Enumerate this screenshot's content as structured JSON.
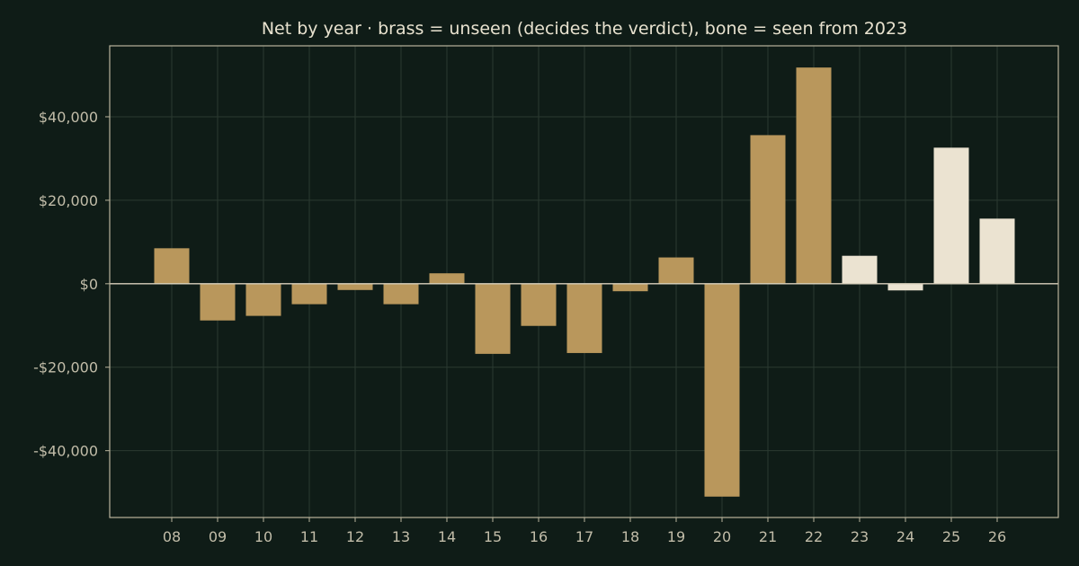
{
  "chart_data": {
    "type": "bar",
    "title": "Net by year  ·  brass = unseen (decides the verdict), bone = seen from 2023",
    "xlabel": "",
    "ylabel": "",
    "categories": [
      "08",
      "09",
      "10",
      "11",
      "12",
      "13",
      "14",
      "15",
      "16",
      "17",
      "18",
      "19",
      "20",
      "21",
      "22",
      "23",
      "24",
      "25",
      "26"
    ],
    "values": [
      8500,
      -8800,
      -7700,
      -4900,
      -1500,
      -4900,
      2500,
      -16800,
      -10100,
      -16600,
      -1800,
      6300,
      -51000,
      35600,
      51800,
      6700,
      -1600,
      32600,
      15600
    ],
    "series": [
      {
        "name": "unseen",
        "color": "#b9975c",
        "categories": [
          "08",
          "09",
          "10",
          "11",
          "12",
          "13",
          "14",
          "15",
          "16",
          "17",
          "18",
          "19",
          "20",
          "21",
          "22"
        ]
      },
      {
        "name": "seen",
        "color": "#ebe3d1",
        "categories": [
          "23",
          "24",
          "25",
          "26"
        ]
      }
    ],
    "ylim": [
      -56000,
      57000
    ],
    "yticks": [
      -40000,
      -20000,
      0,
      20000,
      40000
    ],
    "ytick_labels": [
      "-$40,000",
      "-$20,000",
      "$0",
      "$20,000",
      "$40,000"
    ],
    "grid": true,
    "legend": "none",
    "colors": {
      "background": "#0f1c17",
      "frame": "#b9b39c",
      "grid": "#2b3a31",
      "zero_line": "#d8d1bc",
      "title": "#e8e2cf",
      "tick": "#c2bda9"
    }
  }
}
